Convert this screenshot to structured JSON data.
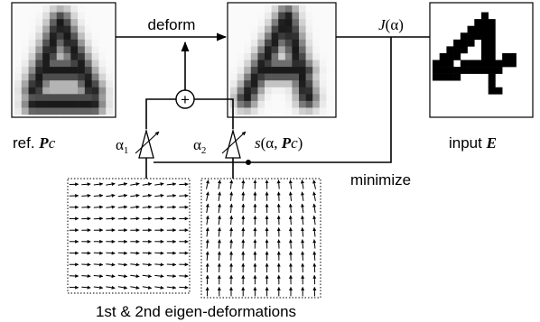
{
  "labels": {
    "deform": "deform",
    "cost": {
      "func": "J",
      "arg": "(α)"
    },
    "reference": {
      "prefix": "ref. ",
      "symbol": "P",
      "sub": "c"
    },
    "deformed": {
      "func": "s",
      "open": "(α, ",
      "symbol": "P",
      "sub": "c",
      "close": ")"
    },
    "input": {
      "prefix": "input ",
      "symbol": "E"
    },
    "alpha1": {
      "symbol": "α",
      "sub": "1"
    },
    "alpha2": {
      "symbol": "α",
      "sub": "2"
    },
    "adder": "+",
    "minimize": "minimize",
    "caption": "1st & 2nd eigen-deformations"
  }
}
